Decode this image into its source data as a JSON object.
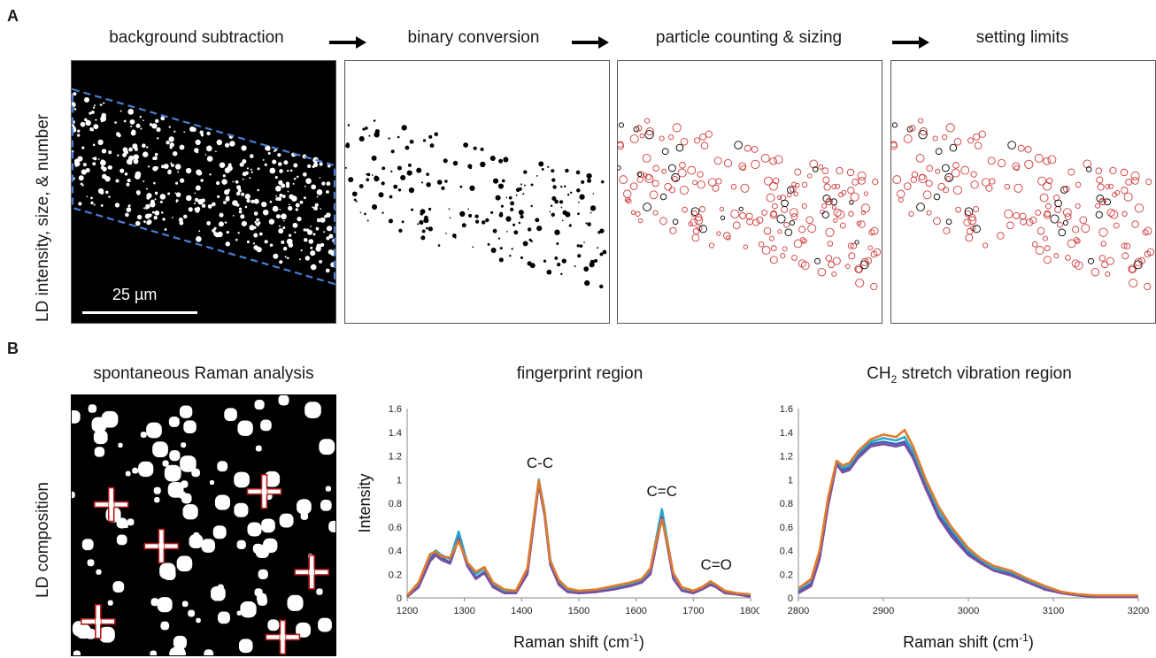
{
  "panel_a": {
    "letter": "A",
    "row_label": "LD intensity, size, & number",
    "steps": [
      "background subtraction",
      "binary conversion",
      "particle counting & sizing",
      "setting limits"
    ],
    "scale_bar_label": "25 µm",
    "colors": {
      "roi_outline": "#4a7fd4",
      "particle_outline": "#d03a3a"
    }
  },
  "panel_b": {
    "letter": "B",
    "row_label": "LD composition",
    "image_title": "spontaneous Raman analysis",
    "marker_color": "#b01a1a",
    "markers": [
      {
        "x": 0.15,
        "y": 0.42
      },
      {
        "x": 0.34,
        "y": 0.58
      },
      {
        "x": 0.73,
        "y": 0.37
      },
      {
        "x": 0.91,
        "y": 0.68
      },
      {
        "x": 0.1,
        "y": 0.87
      },
      {
        "x": 0.8,
        "y": 0.93
      }
    ]
  },
  "chart_data": [
    {
      "type": "line",
      "title": "fingerprint region",
      "xlabel": "Raman shift (cm-1)",
      "xlabel_main": "Raman shift (cm",
      "xlabel_sup": "-1",
      "xlabel_close": ")",
      "ylabel": "Intensity",
      "xlim": [
        1200,
        1800
      ],
      "ylim": [
        0,
        1.6
      ],
      "xticks": [
        1200,
        1300,
        1400,
        1500,
        1600,
        1700,
        1800
      ],
      "yticks": [
        "0",
        "0.2",
        "0.4",
        "0.6",
        "0.8",
        "1",
        "1.2",
        "1.4",
        "1.6"
      ],
      "annotations": [
        {
          "text": "C-C",
          "x": 1432,
          "y": 1.1
        },
        {
          "text": "C=C",
          "x": 1645,
          "y": 0.86
        },
        {
          "text": "C=O",
          "x": 1740,
          "y": 0.24
        }
      ],
      "x": [
        1200,
        1220,
        1240,
        1250,
        1260,
        1275,
        1290,
        1305,
        1320,
        1335,
        1350,
        1370,
        1390,
        1410,
        1420,
        1430,
        1440,
        1450,
        1465,
        1480,
        1500,
        1530,
        1560,
        1590,
        1610,
        1625,
        1635,
        1645,
        1655,
        1665,
        1680,
        1700,
        1715,
        1730,
        1740,
        1755,
        1775,
        1800
      ],
      "series": [
        {
          "values": [
            0.01,
            0.1,
            0.33,
            0.38,
            0.34,
            0.3,
            0.54,
            0.28,
            0.17,
            0.22,
            0.1,
            0.05,
            0.05,
            0.22,
            0.6,
            0.98,
            0.72,
            0.3,
            0.12,
            0.06,
            0.04,
            0.05,
            0.08,
            0.11,
            0.14,
            0.22,
            0.47,
            0.72,
            0.45,
            0.18,
            0.07,
            0.05,
            0.08,
            0.12,
            0.1,
            0.05,
            0.03,
            0.02
          ]
        },
        {
          "values": [
            0.02,
            0.12,
            0.36,
            0.4,
            0.36,
            0.33,
            0.56,
            0.3,
            0.2,
            0.25,
            0.12,
            0.06,
            0.06,
            0.24,
            0.62,
            1.0,
            0.74,
            0.32,
            0.14,
            0.07,
            0.05,
            0.06,
            0.09,
            0.12,
            0.15,
            0.24,
            0.5,
            0.75,
            0.47,
            0.2,
            0.08,
            0.06,
            0.09,
            0.13,
            0.11,
            0.06,
            0.04,
            0.02
          ]
        },
        {
          "values": [
            0.01,
            0.09,
            0.31,
            0.36,
            0.32,
            0.29,
            0.5,
            0.27,
            0.16,
            0.21,
            0.09,
            0.04,
            0.04,
            0.2,
            0.58,
            0.96,
            0.7,
            0.28,
            0.11,
            0.05,
            0.04,
            0.05,
            0.07,
            0.1,
            0.13,
            0.2,
            0.44,
            0.68,
            0.43,
            0.16,
            0.06,
            0.04,
            0.07,
            0.11,
            0.09,
            0.04,
            0.03,
            0.01
          ]
        },
        {
          "values": [
            0.02,
            0.13,
            0.37,
            0.39,
            0.35,
            0.34,
            0.48,
            0.3,
            0.22,
            0.26,
            0.13,
            0.07,
            0.06,
            0.25,
            0.63,
            0.99,
            0.73,
            0.31,
            0.15,
            0.08,
            0.06,
            0.07,
            0.1,
            0.13,
            0.16,
            0.25,
            0.48,
            0.66,
            0.46,
            0.21,
            0.09,
            0.06,
            0.09,
            0.14,
            0.11,
            0.06,
            0.04,
            0.03
          ]
        }
      ],
      "colors": [
        "#3a62b8",
        "#2fa6c8",
        "#7a4fa0",
        "#e07b2a"
      ]
    },
    {
      "type": "line",
      "title_main": "CH",
      "title_sub": "2",
      "title_rest": " stretch vibration region",
      "title": "CH2 stretch vibration region",
      "xlabel": "Raman shift (cm-1)",
      "xlabel_main": "Raman shift (cm",
      "xlabel_sup": "-1",
      "xlabel_close": ")",
      "xlim": [
        2800,
        3200
      ],
      "ylim": [
        0,
        1.6
      ],
      "xticks": [
        2800,
        2900,
        3000,
        3100,
        3200
      ],
      "yticks": [
        "0",
        "0.2",
        "0.4",
        "0.6",
        "0.8",
        "1",
        "1.2",
        "1.4",
        "1.6"
      ],
      "x": [
        2800,
        2815,
        2825,
        2835,
        2845,
        2852,
        2860,
        2870,
        2885,
        2900,
        2915,
        2925,
        2935,
        2950,
        2965,
        2980,
        3000,
        3015,
        3030,
        3050,
        3070,
        3090,
        3110,
        3130,
        3150,
        3175,
        3200
      ],
      "series": [
        {
          "values": [
            0.05,
            0.12,
            0.35,
            0.8,
            1.15,
            1.08,
            1.1,
            1.2,
            1.3,
            1.32,
            1.3,
            1.32,
            1.2,
            0.95,
            0.7,
            0.55,
            0.38,
            0.3,
            0.24,
            0.2,
            0.14,
            0.08,
            0.04,
            0.02,
            0.01,
            0.01,
            0.01
          ]
        },
        {
          "values": [
            0.07,
            0.15,
            0.38,
            0.82,
            1.14,
            1.1,
            1.12,
            1.22,
            1.32,
            1.35,
            1.33,
            1.36,
            1.24,
            0.98,
            0.74,
            0.58,
            0.4,
            0.32,
            0.25,
            0.22,
            0.15,
            0.09,
            0.05,
            0.02,
            0.01,
            0.01,
            0.01
          ]
        },
        {
          "values": [
            0.04,
            0.1,
            0.33,
            0.78,
            1.13,
            1.06,
            1.08,
            1.18,
            1.28,
            1.3,
            1.28,
            1.3,
            1.18,
            0.92,
            0.68,
            0.52,
            0.36,
            0.29,
            0.23,
            0.19,
            0.13,
            0.07,
            0.04,
            0.02,
            0.01,
            0.01,
            0.01
          ]
        },
        {
          "values": [
            0.08,
            0.16,
            0.4,
            0.85,
            1.16,
            1.12,
            1.14,
            1.24,
            1.34,
            1.38,
            1.36,
            1.42,
            1.28,
            1.0,
            0.77,
            0.6,
            0.42,
            0.33,
            0.27,
            0.23,
            0.16,
            0.1,
            0.05,
            0.03,
            0.02,
            0.02,
            0.02
          ]
        }
      ],
      "colors": [
        "#3a62b8",
        "#2fa6c8",
        "#7a4fa0",
        "#e07b2a"
      ]
    }
  ]
}
